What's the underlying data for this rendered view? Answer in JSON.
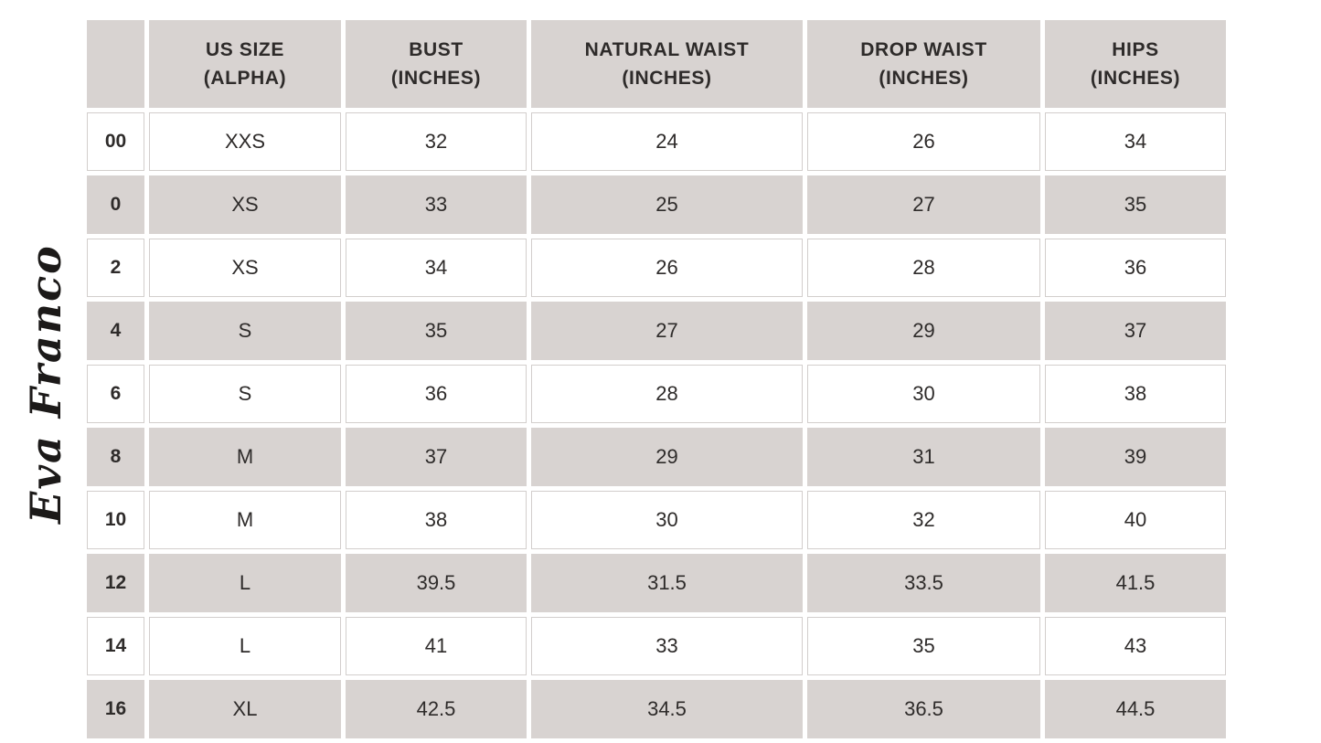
{
  "brand": {
    "logo_text": "Eva Franco"
  },
  "colors": {
    "header_bg": "#d8d3d1",
    "stripe_bg": "#d8d3d1",
    "row_bg": "#ffffff",
    "grid_line": "#d2cecc",
    "text": "#2e2b2a",
    "logo": "#1c1a19"
  },
  "chart_data": {
    "type": "table",
    "columns": [
      {
        "key": "us-size-numeric",
        "line1": "",
        "line2": ""
      },
      {
        "key": "us-size-alpha",
        "line1": "US SIZE",
        "line2": "(ALPHA)"
      },
      {
        "key": "bust",
        "line1": "BUST",
        "line2": "(INCHES)"
      },
      {
        "key": "natural-waist",
        "line1": "NATURAL WAIST",
        "line2": "(INCHES)"
      },
      {
        "key": "drop-waist",
        "line1": "DROP WAIST",
        "line2": "(INCHES)"
      },
      {
        "key": "hips",
        "line1": "HIPS",
        "line2": "(INCHES)"
      }
    ],
    "rows": [
      [
        "00",
        "XXS",
        "32",
        "24",
        "26",
        "34"
      ],
      [
        "0",
        "XS",
        "33",
        "25",
        "27",
        "35"
      ],
      [
        "2",
        "XS",
        "34",
        "26",
        "28",
        "36"
      ],
      [
        "4",
        "S",
        "35",
        "27",
        "29",
        "37"
      ],
      [
        "6",
        "S",
        "36",
        "28",
        "30",
        "38"
      ],
      [
        "8",
        "M",
        "37",
        "29",
        "31",
        "39"
      ],
      [
        "10",
        "M",
        "38",
        "30",
        "32",
        "40"
      ],
      [
        "12",
        "L",
        "39.5",
        "31.5",
        "33.5",
        "41.5"
      ],
      [
        "14",
        "L",
        "41",
        "33",
        "35",
        "43"
      ],
      [
        "16",
        "XL",
        "42.5",
        "34.5",
        "36.5",
        "44.5"
      ]
    ],
    "layout": {
      "striping": "alternating white and warm-gray rows with gray header row",
      "units": "inches",
      "grid": "thin light lines between cells"
    }
  }
}
